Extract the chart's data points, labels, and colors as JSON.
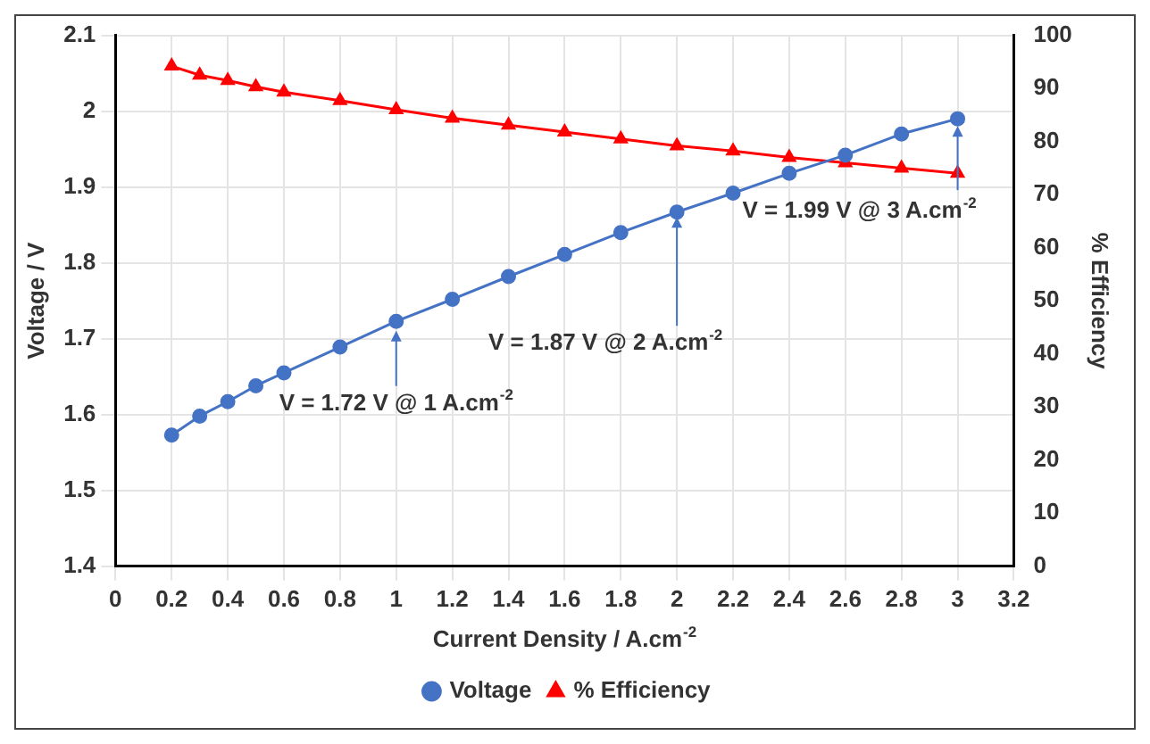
{
  "chart_data": {
    "type": "line",
    "x": [
      0.2,
      0.3,
      0.4,
      0.5,
      0.6,
      0.8,
      1,
      1.2,
      1.4,
      1.6,
      1.8,
      2,
      2.2,
      2.4,
      2.6,
      2.8,
      3
    ],
    "xlabel": "Current Density / A.cm$^{-2}$",
    "ylabel": "Voltage / V",
    "y2label": "% Efficiency",
    "series": [
      {
        "name": "Voltage",
        "color": "#4472c4",
        "marker": "circle",
        "values": [
          1.573,
          1.598,
          1.617,
          1.638,
          1.655,
          1.689,
          1.723,
          1.752,
          1.782,
          1.811,
          1.84,
          1.867,
          1.892,
          1.918,
          1.942,
          1.97,
          1.99
        ]
      },
      {
        "name": "% Efficiency",
        "color": "#ff0000",
        "marker": "triangle",
        "axis": "y2",
        "values": [
          94.2,
          92.5,
          91.5,
          90.3,
          89.3,
          87.7,
          86.0,
          84.4,
          83.1,
          81.8,
          80.5,
          79.2,
          78.2,
          77.0,
          76.0,
          75.0,
          74.0
        ]
      }
    ],
    "xlim": [
      0,
      3.2
    ],
    "xticks": [
      0,
      0.2,
      0.4,
      0.6,
      0.8,
      1,
      1.2,
      1.4,
      1.6,
      1.8,
      2,
      2.2,
      2.4,
      2.6,
      2.8,
      3,
      3.2
    ],
    "ylim": [
      1.4,
      2.1
    ],
    "yticks": [
      1.4,
      1.5,
      1.6,
      1.7,
      1.8,
      1.9,
      2.0,
      2.1
    ],
    "y2lim": [
      0,
      100
    ],
    "y2ticks": [
      0,
      10,
      20,
      30,
      40,
      50,
      60,
      70,
      80,
      90,
      100
    ],
    "annotations": [
      {
        "text": "V = 1.72 V @ 1 A.cm$^{-2}$",
        "x": 1,
        "y": 1.72
      },
      {
        "text": "V = 1.87 V @ 2 A.cm$^{-2}$",
        "x": 2,
        "y": 1.87
      },
      {
        "text": "V = 1.99 V @ 3 A.cm$^{-2}$",
        "x": 3,
        "y": 1.99
      }
    ],
    "grid": true,
    "legend": "bottom"
  }
}
